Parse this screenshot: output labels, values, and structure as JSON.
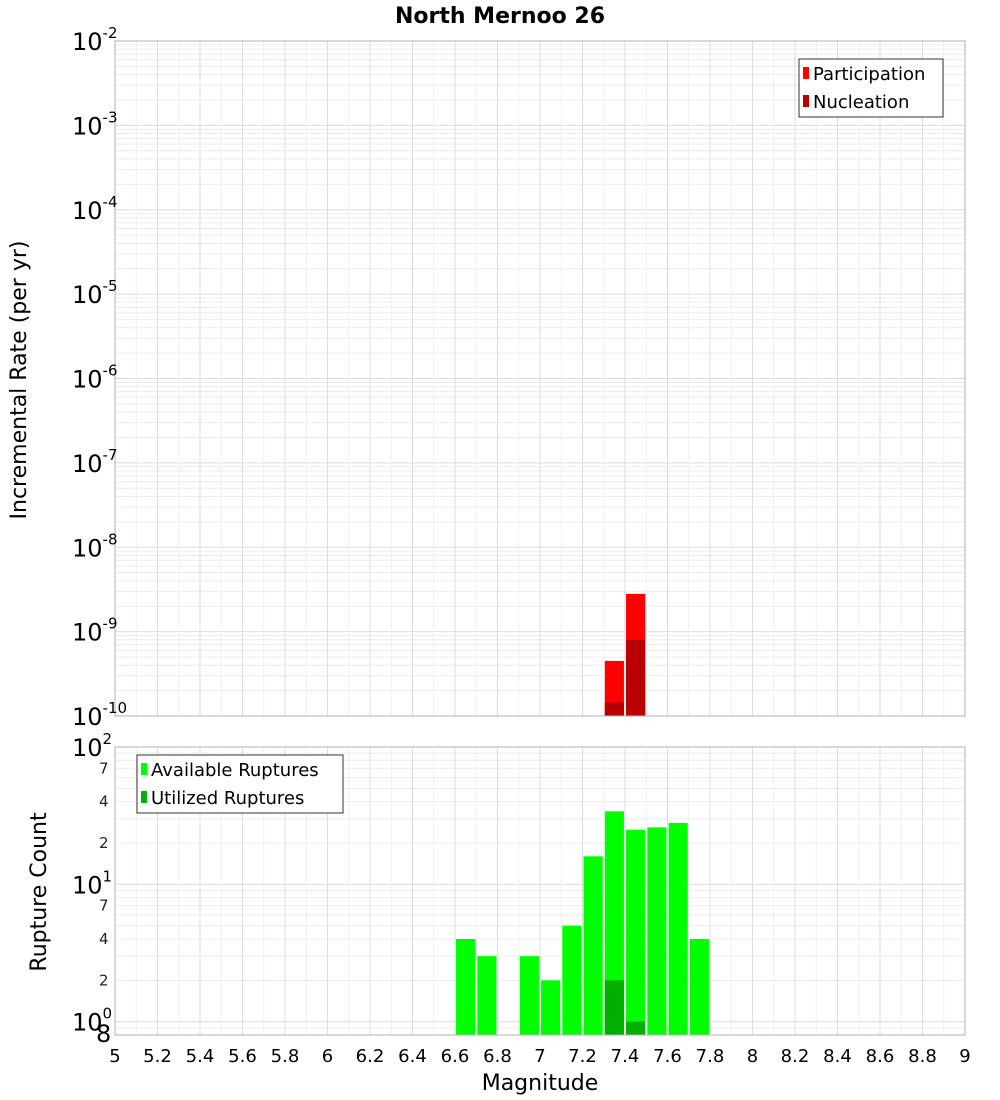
{
  "chart_data": [
    {
      "type": "bar",
      "title": "North Mernoo 26",
      "xlabel": "",
      "ylabel": "Incremental Rate (per yr)",
      "yscale": "log",
      "xlim": [
        5,
        9
      ],
      "ylim": [
        1e-10,
        0.01
      ],
      "y_ticks": [
        {
          "base": "10",
          "exp": "-10",
          "value": 1e-10
        },
        {
          "base": "10",
          "exp": "-9",
          "value": 1e-09
        },
        {
          "base": "10",
          "exp": "-8",
          "value": 1e-08
        },
        {
          "base": "10",
          "exp": "-7",
          "value": 1e-07
        },
        {
          "base": "10",
          "exp": "-6",
          "value": 1e-06
        },
        {
          "base": "10",
          "exp": "-5",
          "value": 1e-05
        },
        {
          "base": "10",
          "exp": "-4",
          "value": 0.0001
        },
        {
          "base": "10",
          "exp": "-3",
          "value": 0.001
        },
        {
          "base": "10",
          "exp": "-2",
          "value": 0.01
        }
      ],
      "grid": true,
      "legend_position": "top-right",
      "bar_width": 0.09,
      "series": [
        {
          "name": "Participation",
          "color": "#ff0000",
          "points": [
            {
              "x": 7.35,
              "y": 4.5e-10
            },
            {
              "x": 7.45,
              "y": 2.8e-09
            }
          ]
        },
        {
          "name": "Nucleation",
          "color": "#b80000",
          "points": [
            {
              "x": 7.35,
              "y": 1.45e-10
            },
            {
              "x": 7.45,
              "y": 8e-10
            }
          ]
        }
      ]
    },
    {
      "type": "bar",
      "title": "",
      "xlabel": "Magnitude",
      "ylabel": "Rupture Count",
      "yscale": "log",
      "xlim": [
        5,
        9
      ],
      "ylim": [
        0.8,
        100
      ],
      "x_ticks": [
        "5",
        "5.2",
        "5.4",
        "5.6",
        "5.8",
        "6",
        "6.2",
        "6.4",
        "6.6",
        "6.8",
        "7",
        "7.2",
        "7.4",
        "7.6",
        "7.8",
        "8",
        "8.2",
        "8.4",
        "8.6",
        "8.8",
        "9"
      ],
      "y_ticks": [
        {
          "base": "10",
          "exp": "0",
          "value": 1
        },
        {
          "base": "10",
          "exp": "1",
          "value": 10
        },
        {
          "base": "10",
          "exp": "2",
          "value": 100
        }
      ],
      "y_minor_labels": [
        {
          "label": "8",
          "value": 0.8
        },
        {
          "label": "2",
          "value": 2
        },
        {
          "label": "4",
          "value": 4
        },
        {
          "label": "7",
          "value": 7
        },
        {
          "label": "2",
          "value": 20
        },
        {
          "label": "4",
          "value": 40
        },
        {
          "label": "7",
          "value": 70
        }
      ],
      "grid": true,
      "legend_position": "top-left",
      "bar_width": 0.09,
      "series": [
        {
          "name": "Available Ruptures",
          "color": "#00ff00",
          "points": [
            {
              "x": 6.65,
              "y": 4
            },
            {
              "x": 6.75,
              "y": 3
            },
            {
              "x": 6.95,
              "y": 3
            },
            {
              "x": 7.05,
              "y": 2
            },
            {
              "x": 7.15,
              "y": 5
            },
            {
              "x": 7.25,
              "y": 16
            },
            {
              "x": 7.35,
              "y": 34
            },
            {
              "x": 7.45,
              "y": 25
            },
            {
              "x": 7.55,
              "y": 26
            },
            {
              "x": 7.65,
              "y": 28
            },
            {
              "x": 7.75,
              "y": 4
            }
          ]
        },
        {
          "name": "Utilized Ruptures",
          "color": "#00b000",
          "points": [
            {
              "x": 7.35,
              "y": 2
            },
            {
              "x": 7.45,
              "y": 1
            }
          ]
        }
      ]
    }
  ]
}
